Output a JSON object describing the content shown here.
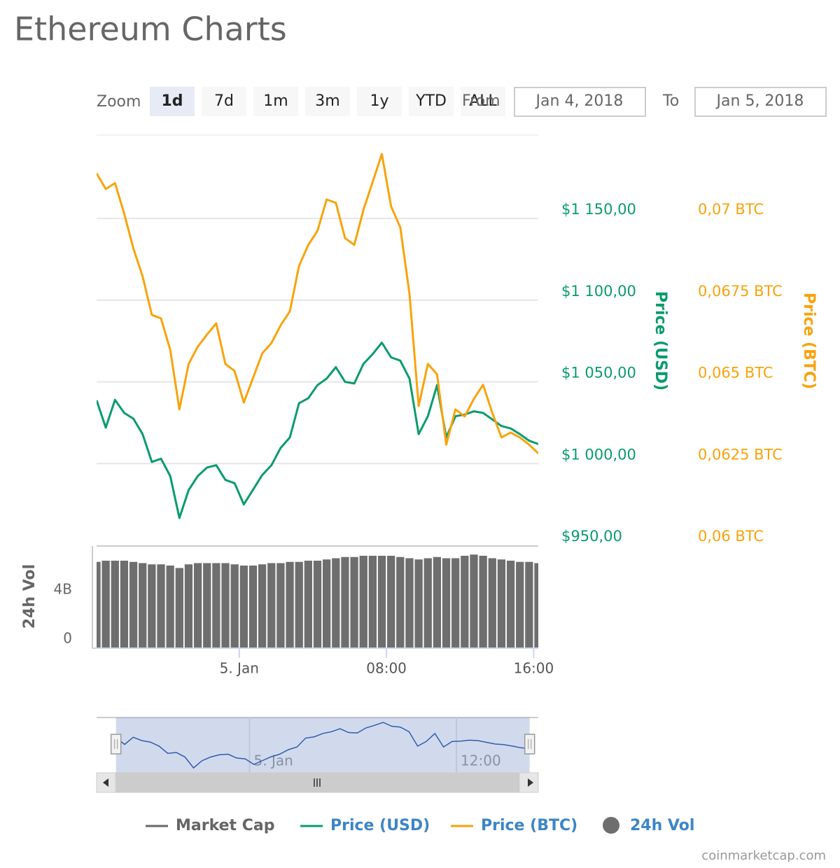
{
  "title": "Ethereum Charts",
  "zoom": {
    "label": "Zoom",
    "buttons": [
      "1d",
      "7d",
      "1m",
      "3m",
      "1y",
      "YTD",
      "ALL"
    ],
    "active": 0
  },
  "range": {
    "from_label": "From",
    "from": "Jan 4, 2018",
    "to_label": "To",
    "to": "Jan 5, 2018"
  },
  "chart_data": [
    {
      "type": "line",
      "x": [
        -7.75,
        -7.25,
        -6.75,
        -6.25,
        -5.75,
        -5.25,
        -4.75,
        -4.25,
        -3.75,
        -3.25,
        -2.75,
        -2.25,
        -1.75,
        -1.25,
        -0.75,
        -0.25,
        0.25,
        0.75,
        1.25,
        1.75,
        2.25,
        2.75,
        3.25,
        3.75,
        4.25,
        4.75,
        5.25,
        5.75,
        6.25,
        6.75,
        7.25,
        7.75,
        8.25,
        8.75,
        9.25,
        9.75,
        10.25,
        10.75,
        11.25,
        11.75,
        12.25,
        12.75,
        13.25,
        13.75,
        14.25,
        14.75,
        15.25,
        15.75,
        16.25
      ],
      "xlim": [
        -7.75,
        16.25
      ],
      "ylim": [
        950,
        1201
      ],
      "yticks": [
        {
          "value": 950,
          "label": "$950,00"
        },
        {
          "value": 1000,
          "label": "$1 000,00"
        },
        {
          "value": 1050,
          "label": "$1 050,00"
        },
        {
          "value": 1100,
          "label": "$1 100,00"
        },
        {
          "value": 1150,
          "label": "$1 150,00"
        }
      ],
      "y2lim": [
        0.06,
        0.07255
      ],
      "y2ticks": [
        {
          "value": 0.06,
          "label": "0,06 BTC"
        },
        {
          "value": 0.0625,
          "label": "0,0625 BTC"
        },
        {
          "value": 0.065,
          "label": "0,065 BTC"
        },
        {
          "value": 0.0675,
          "label": "0,0675 BTC"
        },
        {
          "value": 0.07,
          "label": "0,07 BTC"
        }
      ],
      "ylabel": "Price (USD)",
      "y2label": "Price (BTC)",
      "grid": true,
      "series": [
        {
          "name": "Price (USD)",
          "color": "#0a9b6d",
          "values": [
            1038.7,
            1022,
            1039,
            1031,
            1027.5,
            1018,
            1001,
            1003,
            992.4,
            966.7,
            983.8,
            992.4,
            997.6,
            999,
            990,
            988,
            975,
            984,
            993,
            999,
            1009.6,
            1016,
            1037,
            1040,
            1048,
            1052,
            1059,
            1050,
            1049,
            1061,
            1067,
            1074,
            1065,
            1063,
            1052,
            1018,
            1029,
            1048,
            1016,
            1029,
            1030,
            1032,
            1031,
            1027,
            1023,
            1021.5,
            1018,
            1014,
            1012
          ]
        },
        {
          "name": "Price (BTC)",
          "color": "#f7a30c",
          "axis": "y2",
          "values": [
            0.07138,
            0.0709,
            0.07108,
            0.07015,
            0.06908,
            0.06823,
            0.06705,
            0.06694,
            0.06598,
            0.06416,
            0.06555,
            0.06608,
            0.06645,
            0.06679,
            0.06555,
            0.06533,
            0.06437,
            0.06512,
            0.06587,
            0.06619,
            0.06673,
            0.06716,
            0.06855,
            0.06919,
            0.06962,
            0.07058,
            0.07048,
            0.0694,
            0.06919,
            0.07026,
            0.07112,
            0.07197,
            0.07037,
            0.06973,
            0.06769,
            0.06426,
            0.06555,
            0.06523,
            0.06308,
            0.06416,
            0.06394,
            0.06448,
            0.06491,
            0.06405,
            0.0633,
            0.06345,
            0.0633,
            0.06308,
            0.06281
          ]
        }
      ]
    },
    {
      "type": "bar",
      "x": [
        -7.75,
        -7.25,
        -6.75,
        -6.25,
        -5.75,
        -5.25,
        -4.75,
        -4.25,
        -3.75,
        -3.25,
        -2.75,
        -2.25,
        -1.75,
        -1.25,
        -0.75,
        -0.25,
        0.25,
        0.75,
        1.25,
        1.75,
        2.25,
        2.75,
        3.25,
        3.75,
        4.25,
        4.75,
        5.25,
        5.75,
        6.25,
        6.75,
        7.25,
        7.75,
        8.25,
        8.75,
        9.25,
        9.75,
        10.25,
        10.75,
        11.25,
        11.75,
        12.25,
        12.75,
        13.25,
        13.75,
        14.25,
        14.75,
        15.25,
        15.75,
        16.25
      ],
      "xlim": [
        -7.75,
        16.25
      ],
      "xticks": [
        {
          "value": 0,
          "label": "5. Jan"
        },
        {
          "value": 8,
          "label": "08:00"
        },
        {
          "value": 16,
          "label": "16:00"
        }
      ],
      "ylim": [
        0,
        8300000000
      ],
      "yticks": [
        0,
        {
          "value": 4000000000,
          "label": "4B"
        }
      ],
      "ylabel": "24h Vol",
      "series": [
        {
          "name": "24h Vol",
          "color": "#6e6e6e",
          "values": [
            7000000000,
            7100000000,
            7100000000,
            7100000000,
            7000000000,
            6900000000,
            6800000000,
            6800000000,
            6700000000,
            6500000000,
            6800000000,
            6900000000,
            6900000000,
            6900000000,
            6900000000,
            6800000000,
            6700000000,
            6700000000,
            6800000000,
            6900000000,
            6900000000,
            7000000000,
            7000000000,
            7100000000,
            7100000000,
            7200000000,
            7300000000,
            7400000000,
            7400000000,
            7500000000,
            7500000000,
            7500000000,
            7500000000,
            7400000000,
            7300000000,
            7200000000,
            7300000000,
            7400000000,
            7300000000,
            7300000000,
            7500000000,
            7600000000,
            7500000000,
            7300000000,
            7200000000,
            7100000000,
            7000000000,
            7000000000,
            6900000000
          ]
        }
      ]
    }
  ],
  "navigator": {
    "xlim": [
      -8.875,
      16.75
    ],
    "xticks": [
      {
        "value": 0,
        "label": "5. Jan"
      },
      {
        "value": 12,
        "label": "12:00"
      }
    ],
    "color": "#335cad"
  },
  "hidden_series": [
    {
      "name": "Market Cap",
      "color": "#666666"
    }
  ],
  "credit": "coinmarketcap.com"
}
